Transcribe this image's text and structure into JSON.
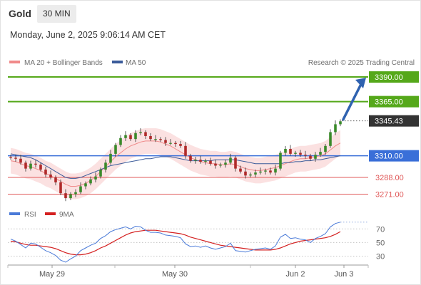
{
  "header": {
    "instrument": "Gold",
    "timeframe": "30 MIN",
    "datetime": "Monday, June 2, 2025 9:06:14 AM CET"
  },
  "chart_data": {
    "type": "candlestick",
    "legend": [
      {
        "label": "MA 20 + Bollinger Bands",
        "color": "#f08a8a"
      },
      {
        "label": "MA 50",
        "color": "#3b5b9a"
      }
    ],
    "attribution": "Research © 2025 Trading Central",
    "ylim": [
      3262,
      3398
    ],
    "levels": [
      {
        "value": 3390.0,
        "label": "3390.00",
        "color": "#55a81a",
        "kind": "resistance"
      },
      {
        "value": 3365.0,
        "label": "3365.00",
        "color": "#55a81a",
        "kind": "resistance"
      },
      {
        "value": 3345.43,
        "label": "3345.43",
        "color": "#333333",
        "kind": "last-price"
      },
      {
        "value": 3310.0,
        "label": "3310.00",
        "color": "#3a6fd8",
        "kind": "pivot"
      },
      {
        "value": 3288.0,
        "label": "3288.00",
        "color": "#e05a5a",
        "kind": "support"
      },
      {
        "value": 3271.0,
        "label": "3271.00",
        "color": "#e05a5a",
        "kind": "support"
      }
    ],
    "forecast_arrow": {
      "from": 3345.43,
      "to": 3390.0,
      "color": "#2f62b0"
    },
    "x_ticks": [
      "May 29",
      "May 30",
      "Jun 2",
      "Jun 3"
    ],
    "price_path": [
      3308,
      3307,
      3303,
      3297,
      3302,
      3301,
      3296,
      3291,
      3288,
      3283,
      3272,
      3267,
      3271,
      3273,
      3279,
      3282,
      3286,
      3289,
      3296,
      3303,
      3312,
      3321,
      3328,
      3331,
      3327,
      3333,
      3334,
      3330,
      3327,
      3327,
      3326,
      3323,
      3323,
      3322,
      3320,
      3310,
      3305,
      3306,
      3304,
      3305,
      3302,
      3300,
      3301,
      3303,
      3308,
      3297,
      3294,
      3290,
      3291,
      3293,
      3294,
      3295,
      3293,
      3297,
      3313,
      3317,
      3312,
      3313,
      3311,
      3310,
      3307,
      3311,
      3314,
      3320,
      3334,
      3342,
      3345
    ],
    "ma20": [
      3305,
      3304,
      3302,
      3300,
      3299,
      3297,
      3295,
      3292,
      3290,
      3287,
      3284,
      3281,
      3279,
      3279,
      3280,
      3282,
      3285,
      3289,
      3294,
      3299,
      3304,
      3309,
      3313,
      3317,
      3320,
      3322,
      3324,
      3325,
      3325,
      3325,
      3324,
      3322,
      3320,
      3317,
      3314,
      3311,
      3308,
      3306,
      3304,
      3303,
      3302,
      3302,
      3301,
      3301,
      3302,
      3301,
      3299,
      3297,
      3296,
      3295,
      3295,
      3296,
      3297,
      3298,
      3300,
      3302,
      3304,
      3306,
      3307,
      3307,
      3308,
      3309,
      3310,
      3312,
      3316,
      3320,
      3323
    ],
    "ma50": [
      3312,
      3311,
      3310,
      3309,
      3308,
      3306,
      3303,
      3300,
      3297,
      3294,
      3291,
      3288,
      3287,
      3287,
      3288,
      3290,
      3292,
      3294,
      3296,
      3298,
      3300,
      3301,
      3302,
      3303,
      3304,
      3305,
      3306,
      3307,
      3307,
      3308,
      3309,
      3309,
      3309,
      3308,
      3307,
      3306,
      3305,
      3305,
      3305,
      3305,
      3305,
      3306,
      3306,
      3306,
      3306,
      3306,
      3305,
      3304,
      3303,
      3302,
      3302,
      3302,
      3302,
      3302,
      3302,
      3303,
      3303,
      3304,
      3304,
      3305,
      3305,
      3306,
      3306,
      3307,
      3308,
      3309,
      3310
    ],
    "rsi": {
      "legend": [
        {
          "label": "RSI",
          "color": "#4a7ad8"
        },
        {
          "label": "9MA",
          "color": "#d42020"
        }
      ],
      "levels": [
        70,
        50,
        30
      ],
      "ylim": [
        20,
        85
      ],
      "rsi_values": [
        55,
        52,
        47,
        42,
        49,
        48,
        43,
        38,
        35,
        31,
        24,
        21,
        26,
        30,
        38,
        42,
        46,
        49,
        56,
        60,
        66,
        69,
        71,
        73,
        70,
        74,
        73,
        68,
        65,
        65,
        64,
        61,
        60,
        59,
        57,
        48,
        44,
        45,
        43,
        45,
        42,
        40,
        42,
        44,
        49,
        38,
        37,
        36,
        38,
        40,
        41,
        42,
        40,
        45,
        58,
        62,
        56,
        57,
        55,
        54,
        50,
        56,
        59,
        63,
        73,
        78,
        80
      ],
      "ma9_values": [
        52,
        51,
        49,
        47,
        46,
        46,
        45,
        44,
        43,
        41,
        38,
        35,
        33,
        32,
        32,
        33,
        35,
        38,
        42,
        45,
        49,
        53,
        57,
        61,
        64,
        66,
        67,
        68,
        68,
        68,
        67,
        66,
        65,
        64,
        63,
        61,
        58,
        56,
        54,
        52,
        50,
        48,
        46,
        45,
        44,
        43,
        42,
        41,
        40,
        39,
        39,
        39,
        39,
        40,
        42,
        45,
        48,
        50,
        52,
        53,
        54,
        55,
        56,
        57,
        59,
        62,
        66
      ]
    }
  }
}
